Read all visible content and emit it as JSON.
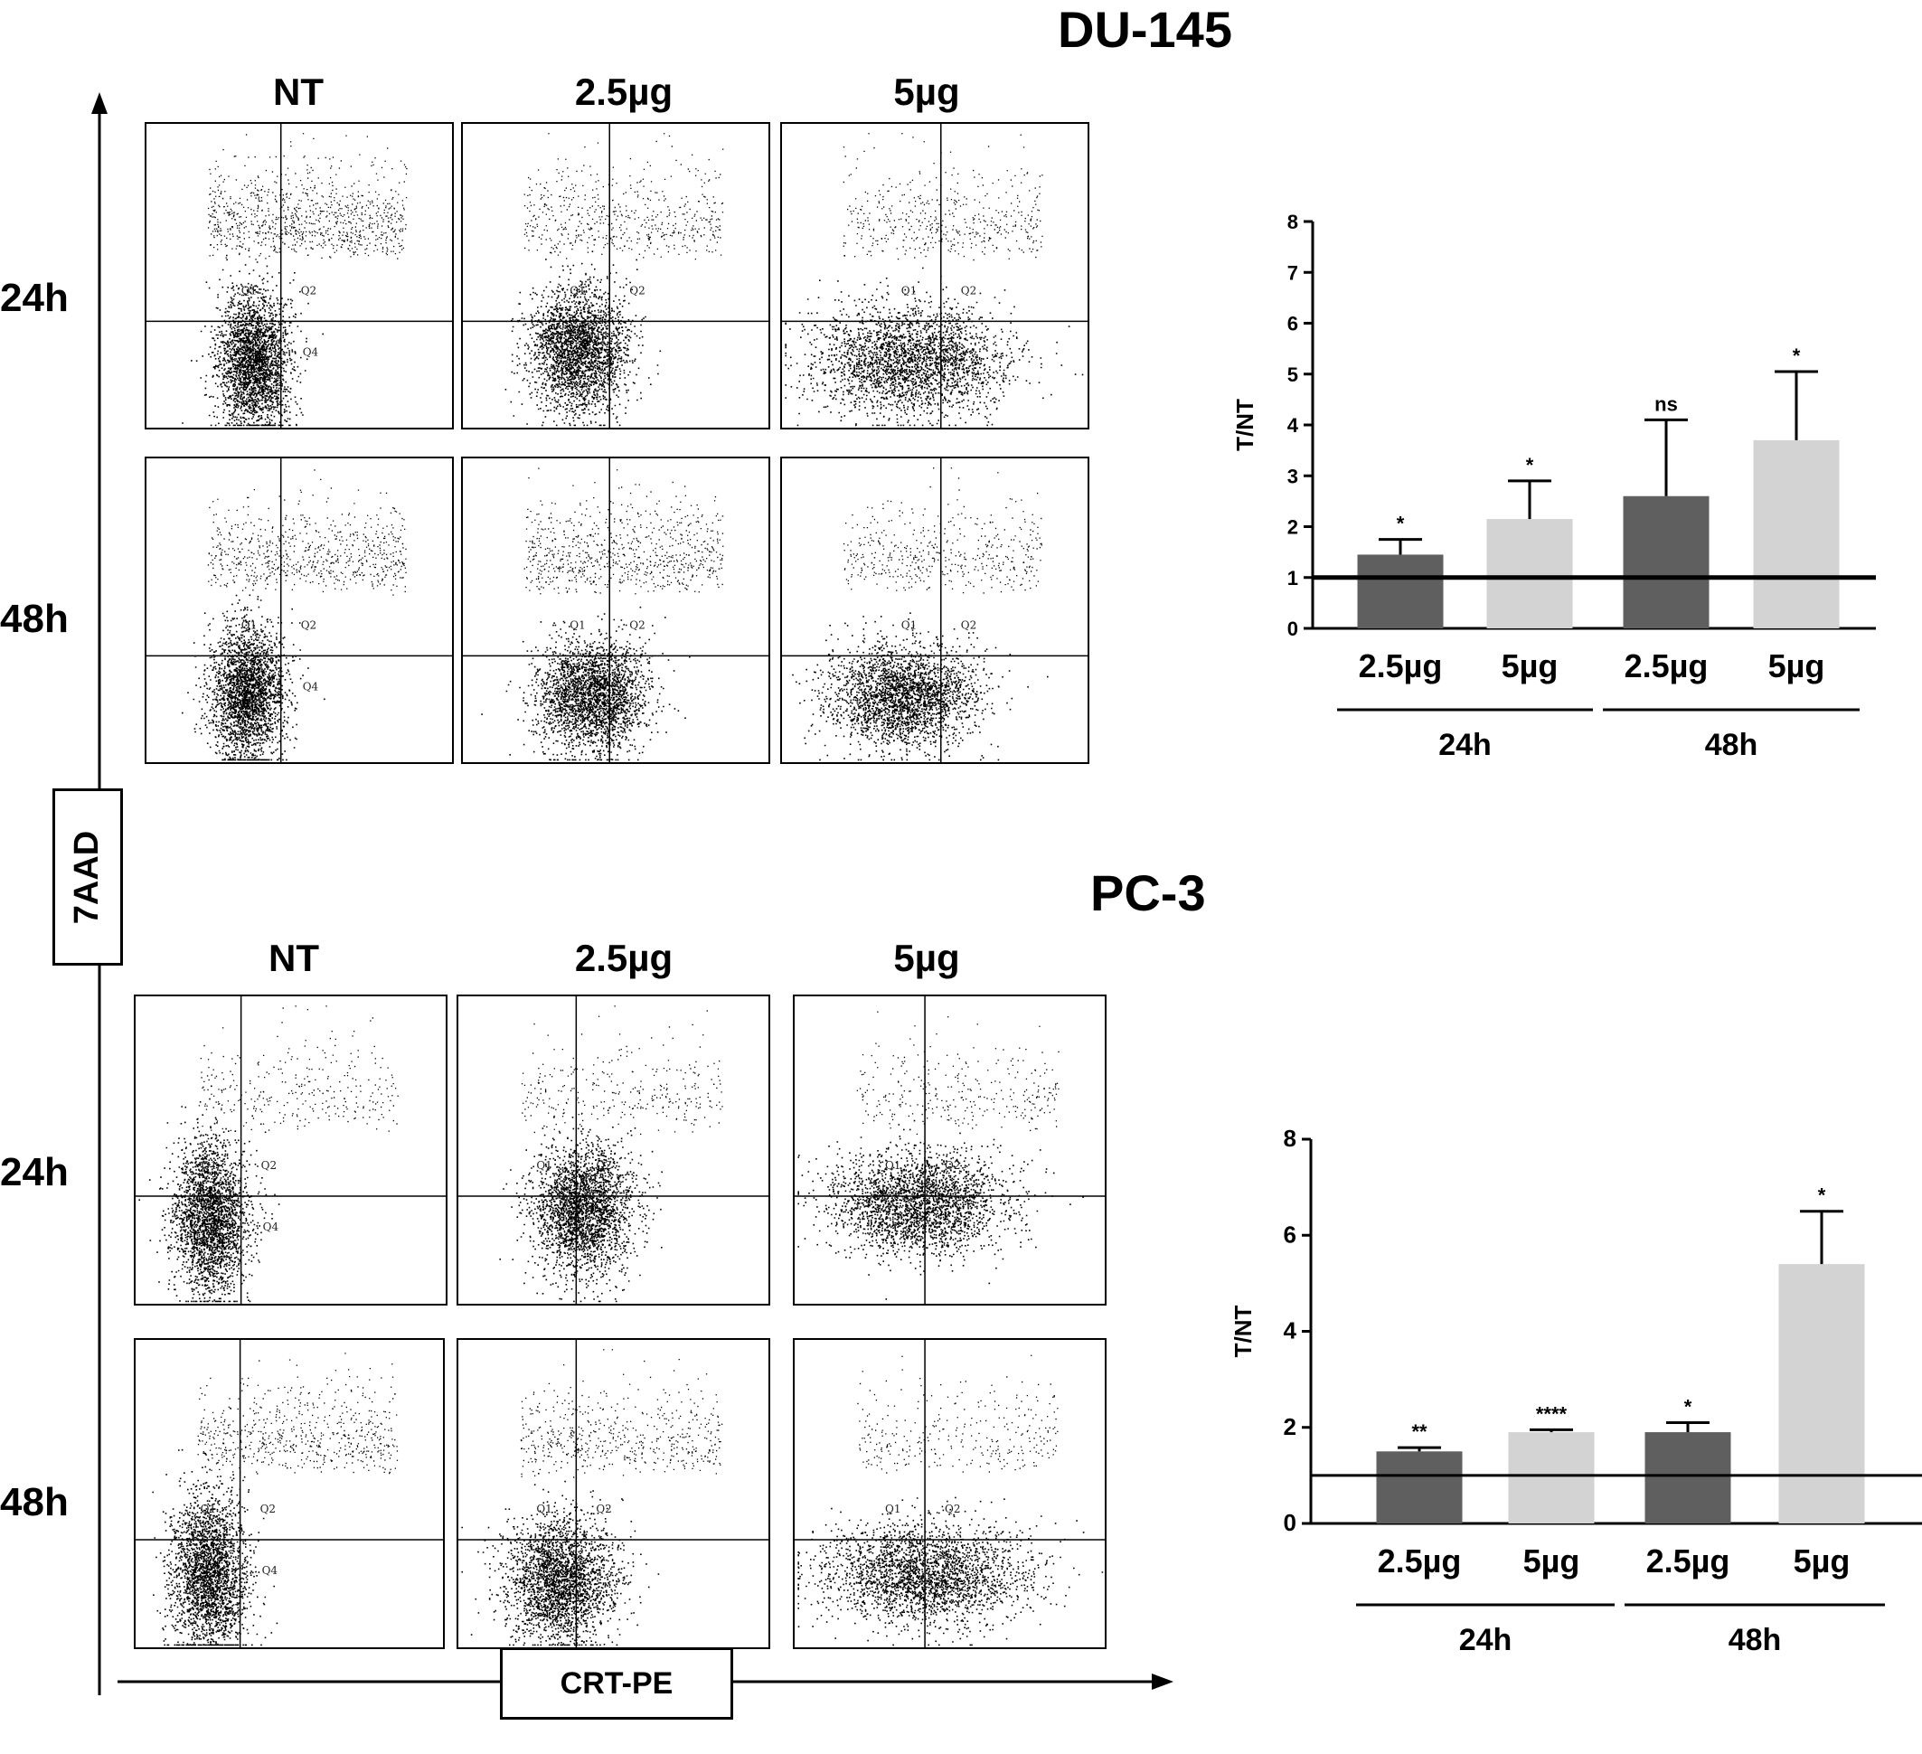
{
  "panels": [
    {
      "title": "DU-145",
      "column_labels": [
        "NT",
        "2.5µg",
        "5µg"
      ],
      "row_labels": [
        "24h",
        "48h"
      ],
      "quadrant_labels": [
        "Q1",
        "Q2",
        "Q4"
      ]
    },
    {
      "title": "PC-3",
      "column_labels": [
        "NT",
        "2.5µg",
        "5µg"
      ],
      "row_labels": [
        "24h",
        "48h"
      ],
      "quadrant_labels": [
        "Q1",
        "Q2",
        "Q4"
      ]
    }
  ],
  "axes": {
    "y_axis_label": "7AAD",
    "x_axis_label": "CRT-PE"
  },
  "colors": {
    "dark_bar": "#5f5f5f",
    "light_bar": "#d3d3d3",
    "ink": "#000000"
  },
  "chart_data": [
    {
      "type": "bar",
      "title": "DU-145",
      "ylabel": "T/NT",
      "xlabel": "",
      "ylim": [
        0,
        8
      ],
      "yticks": [
        0,
        1,
        2,
        3,
        4,
        5,
        6,
        7,
        8
      ],
      "reference_line": 1,
      "categories": [
        "2.5µg",
        "5µg",
        "2.5µg",
        "5µg"
      ],
      "groups": [
        {
          "label": "24h",
          "members": [
            0,
            1
          ]
        },
        {
          "label": "48h",
          "members": [
            2,
            3
          ]
        }
      ],
      "values": [
        1.45,
        2.15,
        2.6,
        3.7
      ],
      "errors": [
        0.3,
        0.75,
        1.5,
        1.35
      ],
      "significance": [
        "*",
        "*",
        "ns",
        "*"
      ],
      "bar_shades": [
        "dark",
        "light",
        "dark",
        "light"
      ]
    },
    {
      "type": "bar",
      "title": "PC-3",
      "ylabel": "T/NT",
      "xlabel": "",
      "ylim": [
        0,
        8
      ],
      "yticks": [
        0,
        2,
        4,
        6,
        8
      ],
      "reference_line": 1,
      "categories": [
        "2.5µg",
        "5µg",
        "2.5µg",
        "5µg"
      ],
      "groups": [
        {
          "label": "24h",
          "members": [
            0,
            1
          ]
        },
        {
          "label": "48h",
          "members": [
            2,
            3
          ]
        }
      ],
      "values": [
        1.5,
        1.9,
        1.9,
        5.4
      ],
      "errors": [
        0.08,
        0.05,
        0.2,
        1.1
      ],
      "significance": [
        "**",
        "****",
        "*",
        "*"
      ],
      "bar_shades": [
        "dark",
        "light",
        "dark",
        "light"
      ]
    }
  ],
  "scatter_plots": [
    {
      "panel": 0,
      "row": 0,
      "col": 0,
      "mean": [
        0.35,
        0.22
      ],
      "spread": [
        0.06,
        0.11
      ],
      "upper_density": 0.12
    },
    {
      "panel": 0,
      "row": 0,
      "col": 1,
      "mean": [
        0.38,
        0.26
      ],
      "spread": [
        0.08,
        0.1
      ],
      "upper_density": 0.07
    },
    {
      "panel": 0,
      "row": 0,
      "col": 2,
      "mean": [
        0.42,
        0.22
      ],
      "spread": [
        0.16,
        0.09
      ],
      "upper_density": 0.06
    },
    {
      "panel": 0,
      "row": 1,
      "col": 0,
      "mean": [
        0.33,
        0.23
      ],
      "spread": [
        0.06,
        0.11
      ],
      "upper_density": 0.09
    },
    {
      "panel": 0,
      "row": 1,
      "col": 1,
      "mean": [
        0.42,
        0.22
      ],
      "spread": [
        0.09,
        0.09
      ],
      "upper_density": 0.1
    },
    {
      "panel": 0,
      "row": 1,
      "col": 2,
      "mean": [
        0.4,
        0.22
      ],
      "spread": [
        0.12,
        0.08
      ],
      "upper_density": 0.06
    },
    {
      "panel": 1,
      "row": 0,
      "col": 0,
      "mean": [
        0.24,
        0.28
      ],
      "spread": [
        0.06,
        0.12
      ],
      "upper_density": 0.04
    },
    {
      "panel": 1,
      "row": 0,
      "col": 1,
      "mean": [
        0.4,
        0.31
      ],
      "spread": [
        0.08,
        0.1
      ],
      "upper_density": 0.04
    },
    {
      "panel": 1,
      "row": 0,
      "col": 2,
      "mean": [
        0.4,
        0.33
      ],
      "spread": [
        0.14,
        0.08
      ],
      "upper_density": 0.04
    },
    {
      "panel": 1,
      "row": 1,
      "col": 0,
      "mean": [
        0.24,
        0.24
      ],
      "spread": [
        0.06,
        0.13
      ],
      "upper_density": 0.08
    },
    {
      "panel": 1,
      "row": 1,
      "col": 1,
      "mean": [
        0.33,
        0.22
      ],
      "spread": [
        0.09,
        0.1
      ],
      "upper_density": 0.07
    },
    {
      "panel": 1,
      "row": 1,
      "col": 2,
      "mean": [
        0.42,
        0.24
      ],
      "spread": [
        0.16,
        0.08
      ],
      "upper_density": 0.04
    }
  ]
}
